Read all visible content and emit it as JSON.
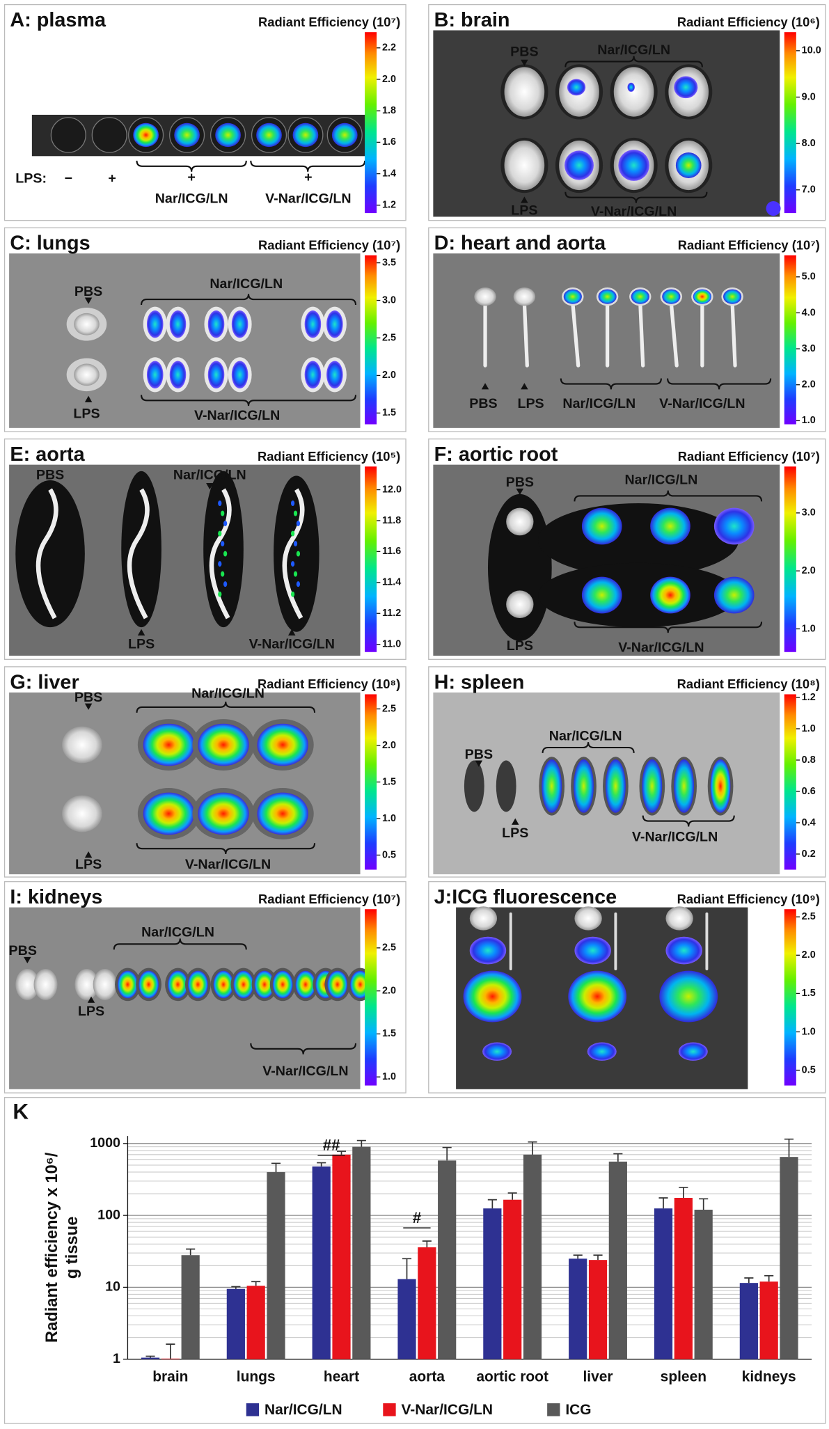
{
  "panels": [
    {
      "title": "A: plasma",
      "colorbar_label": "Radiant Efficiency (10⁷)",
      "colorbar": {
        "range": [
          1.15,
          2.3
        ],
        "ticks": [
          2.2,
          {
            "value": 2,
            "label": "2.0"
          },
          1.8,
          1.6,
          1.4,
          1.2
        ]
      },
      "labels": [
        "LPS:",
        "−",
        "+",
        "+",
        "Nar/ICG/LN",
        "+",
        "V-Nar/ICG/LN"
      ]
    },
    {
      "title": "B: brain",
      "colorbar_label": "Radiant Efficiency (10⁶)",
      "colorbar": {
        "range": [
          6.5,
          10.4
        ],
        "ticks": [
          {
            "value": 10,
            "label": "10.0"
          },
          {
            "value": 9,
            "label": "9.0"
          },
          {
            "value": 8,
            "label": "8.0"
          },
          {
            "value": 7,
            "label": "7.0"
          }
        ]
      },
      "labels": [
        "PBS",
        "Nar/ICG/LN",
        "LPS",
        "V-Nar/ICG/LN"
      ]
    },
    {
      "title": "C: lungs",
      "colorbar_label": "Radiant Efficiency (10⁷)",
      "colorbar": {
        "range": [
          1.35,
          3.6
        ],
        "ticks": [
          3.5,
          {
            "value": 3,
            "label": "3.0"
          },
          2.5,
          {
            "value": 2,
            "label": "2.0"
          },
          1.5
        ]
      },
      "labels": [
        "PBS",
        "Nar/ICG/LN",
        "LPS",
        "V-Nar/ICG/LN"
      ]
    },
    {
      "title": "D: heart and aorta",
      "colorbar_label": "Radiant Efficiency (10⁷)",
      "colorbar": {
        "range": [
          0.9,
          5.6
        ],
        "ticks": [
          {
            "value": 5,
            "label": "5.0"
          },
          {
            "value": 4,
            "label": "4.0"
          },
          {
            "value": 3,
            "label": "3.0"
          },
          {
            "value": 2,
            "label": "2.0"
          },
          {
            "value": 1,
            "label": "1.0"
          }
        ]
      },
      "labels": [
        "PBS",
        "LPS",
        "Nar/ICG/LN",
        "V-Nar/ICG/LN"
      ]
    },
    {
      "title": "E: aorta",
      "colorbar_label": "Radiant Efficiency (10⁵)",
      "colorbar": {
        "range": [
          10.95,
          12.15
        ],
        "ticks": [
          {
            "value": 12,
            "label": "12.0"
          },
          11.8,
          11.6,
          11.4,
          11.2,
          {
            "value": 11,
            "label": "11.0"
          }
        ]
      },
      "labels": [
        "PBS",
        "Nar/ICG/LN",
        "LPS",
        "V-Nar/ICG/LN"
      ]
    },
    {
      "title": "F: aortic root",
      "colorbar_label": "Radiant Efficiency (10⁷)",
      "colorbar": {
        "range": [
          0.6,
          3.8
        ],
        "ticks": [
          {
            "value": 3,
            "label": "3.0"
          },
          {
            "value": 2,
            "label": "2.0"
          },
          {
            "value": 1,
            "label": "1.0"
          }
        ]
      },
      "labels": [
        "PBS",
        "Nar/ICG/LN",
        "LPS",
        "V-Nar/ICG/LN"
      ]
    },
    {
      "title": "G: liver",
      "colorbar_label": "Radiant Efficiency (10⁸)",
      "colorbar": {
        "range": [
          0.3,
          2.7
        ],
        "ticks": [
          2.5,
          {
            "value": 2,
            "label": "2.0"
          },
          1.5,
          {
            "value": 1,
            "label": "1.0"
          },
          0.5
        ]
      },
      "labels": [
        "PBS",
        "Nar/ICG/LN",
        "LPS",
        "V-Nar/ICG/LN"
      ]
    },
    {
      "title": "H: spleen",
      "colorbar_label": "Radiant Efficiency (10⁸)",
      "colorbar": {
        "range": [
          0.1,
          1.22
        ],
        "ticks": [
          1.2,
          {
            "value": 1,
            "label": "1.0"
          },
          0.8,
          0.6,
          0.4,
          0.2
        ]
      },
      "labels": [
        "PBS",
        "Nar/ICG/LN",
        "LPS",
        "V-Nar/ICG/LN"
      ]
    },
    {
      "title": "I: kidneys",
      "colorbar_label": "Radiant Efficiency (10⁷)",
      "colorbar": {
        "range": [
          0.9,
          2.95
        ],
        "ticks": [
          2.5,
          {
            "value": 2,
            "label": "2.0"
          },
          1.5,
          {
            "value": 1,
            "label": "1.0"
          }
        ]
      },
      "labels": [
        "PBS",
        "Nar/ICG/LN",
        "LPS",
        "V-Nar/ICG/LN"
      ]
    },
    {
      "title": "J:ICG fluorescence",
      "colorbar_label": "Radiant Efficiency (10⁹)",
      "colorbar": {
        "range": [
          0.3,
          2.6
        ],
        "ticks": [
          2.5,
          {
            "value": 2,
            "label": "2.0"
          },
          1.5,
          {
            "value": 1,
            "label": "1.0"
          },
          0.5
        ]
      },
      "labels": []
    }
  ],
  "chart_data": {
    "type": "bar",
    "panel_label": "K",
    "ylabel": [
      "Radiant efficiency x 10⁶/",
      "g tissue"
    ],
    "categories": [
      "brain",
      "lungs",
      "heart",
      "aorta",
      "aortic root",
      "liver",
      "spleen",
      "kidneys"
    ],
    "series": [
      {
        "name": "Nar/ICG/LN",
        "color": "#2e3192",
        "values": [
          1.05,
          9.5,
          480,
          13,
          125,
          25,
          125,
          11.5
        ],
        "errors": [
          0.05,
          0.7,
          60,
          12,
          40,
          3,
          50,
          2
        ]
      },
      {
        "name": "V-Nar/ICG/LN",
        "color": "#e8141c",
        "values": [
          1.02,
          10.5,
          700,
          36,
          165,
          24,
          175,
          12
        ],
        "errors": [
          0.6,
          1.5,
          80,
          8,
          40,
          4,
          70,
          2.5
        ]
      },
      {
        "name": "ICG",
        "color": "#595959",
        "values": [
          28,
          400,
          900,
          580,
          700,
          560,
          120,
          650
        ],
        "errors": [
          6,
          130,
          200,
          300,
          350,
          160,
          50,
          500
        ]
      }
    ],
    "ylim": [
      1,
      1270
    ],
    "yticks": [
      1,
      10,
      100,
      1000
    ],
    "log_scale": true,
    "grid": true,
    "minor_grid": true,
    "legend": "bottom",
    "annotations": [
      "##",
      "#"
    ]
  }
}
